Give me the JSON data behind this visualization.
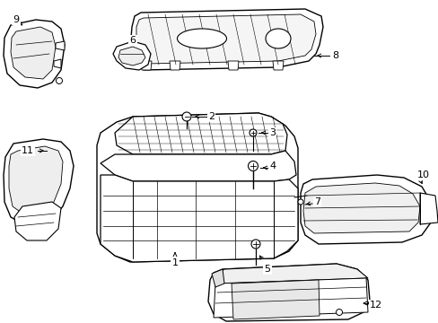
{
  "background_color": "#ffffff",
  "line_color": "#000000",
  "figsize": [
    4.89,
    3.6
  ],
  "dpi": 100,
  "label_fontsize": 8.0
}
